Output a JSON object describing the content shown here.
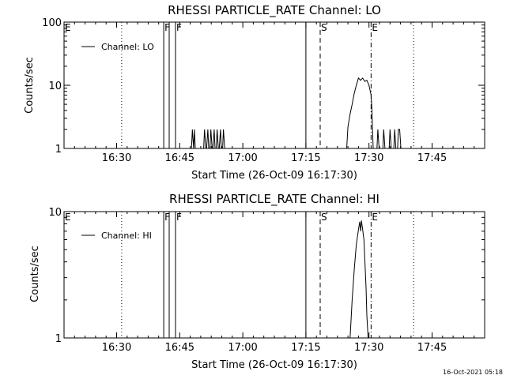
{
  "timestamp": "16-Oct-2021 05:18",
  "chart_data": [
    {
      "type": "line",
      "title": "RHESSI PARTICLE_RATE Channel: LO",
      "xlabel": "Start Time (26-Oct-09 16:17:30)",
      "ylabel": "Counts/sec",
      "yscale": "log",
      "ylim": [
        1,
        100
      ],
      "y_tick_labels": [
        "1",
        "10",
        "100"
      ],
      "y_ticks": [
        1,
        10,
        100
      ],
      "x_unit": "minutes after 16:17:30",
      "xlim": [
        0,
        100
      ],
      "x_tick_labels": [
        "16:30",
        "16:45",
        "17:00",
        "17:15",
        "17:30",
        "17:45"
      ],
      "x_ticks": [
        12.5,
        27.5,
        42.5,
        57.5,
        72.5,
        87.5
      ],
      "legend": {
        "position": "top-left",
        "entries": [
          "Channel: LO"
        ]
      },
      "grid": false,
      "markers": [
        {
          "label": "E",
          "x": 0,
          "style": "none"
        },
        {
          "label": "",
          "x": 13.7,
          "style": "dotted"
        },
        {
          "label": "F",
          "x": 23.7,
          "style": "solid"
        },
        {
          "label": "",
          "x": 25.0,
          "style": "solid"
        },
        {
          "label": "F",
          "x": 26.5,
          "style": "solid"
        },
        {
          "label": "",
          "x": 57.5,
          "style": "solid"
        },
        {
          "label": "S",
          "x": 60.9,
          "style": "dashed"
        },
        {
          "label": "E",
          "x": 73.0,
          "style": "dashdot"
        },
        {
          "label": "",
          "x": 83.1,
          "style": "dotted"
        }
      ],
      "series": [
        {
          "name": "Channel: LO",
          "x": [
            30.3,
            30.5,
            30.8,
            31.0,
            31.2,
            31.5,
            33.2,
            33.4,
            33.7,
            33.9,
            34.2,
            34.4,
            34.7,
            34.9,
            35.2,
            35.4,
            35.7,
            35.9,
            36.2,
            36.4,
            36.7,
            36.9,
            37.2,
            37.4,
            37.7,
            37.9,
            38.2,
            67.2,
            67.5,
            68.0,
            68.5,
            69.0,
            69.5,
            70.0,
            70.5,
            71.0,
            71.5,
            72.0,
            72.5,
            73.0,
            73.2,
            73.5,
            74.4,
            74.6,
            74.9,
            75.8,
            76.0,
            76.3,
            77.3,
            77.5,
            77.8,
            78.4,
            78.6,
            78.9,
            79.3,
            79.5,
            79.8,
            80.1
          ],
          "y": [
            1,
            2,
            1,
            2,
            1,
            1,
            1,
            2,
            1,
            1,
            2,
            1,
            1,
            2,
            1,
            1,
            2,
            1,
            1,
            2,
            1,
            1,
            2,
            1,
            1,
            2,
            1,
            1,
            2.2,
            3.5,
            5,
            7.5,
            10,
            13,
            12,
            13,
            11.5,
            12,
            10,
            7,
            4,
            1,
            1,
            2,
            1,
            1,
            2,
            1,
            1,
            2,
            1,
            1,
            2,
            1,
            1,
            2,
            2,
            1
          ]
        }
      ]
    },
    {
      "type": "line",
      "title": "RHESSI PARTICLE_RATE Channel: HI",
      "xlabel": "Start Time (26-Oct-09 16:17:30)",
      "ylabel": "Counts/sec",
      "yscale": "log",
      "ylim": [
        1,
        10
      ],
      "y_tick_labels": [
        "1",
        "10"
      ],
      "y_ticks": [
        1,
        10
      ],
      "x_unit": "minutes after 16:17:30",
      "xlim": [
        0,
        100
      ],
      "x_tick_labels": [
        "16:30",
        "16:45",
        "17:00",
        "17:15",
        "17:30",
        "17:45"
      ],
      "x_ticks": [
        12.5,
        27.5,
        42.5,
        57.5,
        72.5,
        87.5
      ],
      "legend": {
        "position": "top-left",
        "entries": [
          "Channel: HI"
        ]
      },
      "grid": false,
      "markers": [
        {
          "label": "E",
          "x": 0,
          "style": "none"
        },
        {
          "label": "",
          "x": 13.7,
          "style": "dotted"
        },
        {
          "label": "F",
          "x": 23.7,
          "style": "solid"
        },
        {
          "label": "",
          "x": 25.0,
          "style": "solid"
        },
        {
          "label": "F",
          "x": 26.5,
          "style": "solid"
        },
        {
          "label": "",
          "x": 57.5,
          "style": "solid"
        },
        {
          "label": "S",
          "x": 60.9,
          "style": "dashed"
        },
        {
          "label": "E",
          "x": 73.0,
          "style": "dashdot"
        },
        {
          "label": "",
          "x": 83.1,
          "style": "dotted"
        }
      ],
      "series": [
        {
          "name": "Channel: HI",
          "x": [
            68.0,
            68.5,
            69.0,
            69.5,
            70.0,
            70.3,
            70.5,
            70.7,
            71.0,
            71.3,
            71.5,
            71.8,
            72.0,
            72.3
          ],
          "y": [
            1,
            2,
            3.5,
            5.5,
            7.2,
            8.3,
            7.0,
            8.5,
            7.2,
            6.0,
            4.2,
            2.5,
            1.5,
            1
          ]
        }
      ]
    }
  ]
}
